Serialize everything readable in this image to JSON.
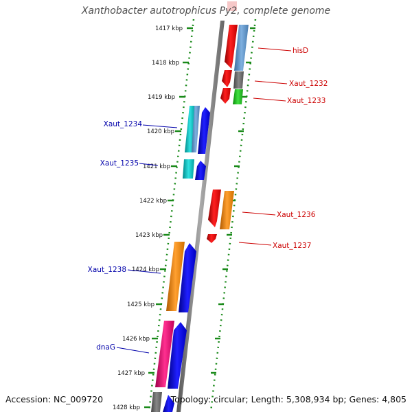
{
  "title": "Xanthobacter autotrophicus Py2, complete genome",
  "footer": {
    "accession": "Accession: NC_009720",
    "summary": "Topology: circular; Length: 5,308,934 bp; Genes: 4,805"
  },
  "colors": {
    "backbone": "#8a8a8a",
    "tick": "#1a8a1a",
    "forward_label": "#cc0000",
    "reverse_label": "#0000aa"
  },
  "scale": {
    "unit": "kbp",
    "ticks": [
      "1417 kbp",
      "1418 kbp",
      "1419 kbp",
      "1420 kbp",
      "1421 kbp",
      "1422 kbp",
      "1423 kbp",
      "1424 kbp",
      "1425 kbp",
      "1426 kbp",
      "1427 kbp",
      "1428 kbp"
    ]
  },
  "gene_labels": [
    {
      "name": "hisD",
      "strand": "forward"
    },
    {
      "name": "Xaut_1232",
      "strand": "forward"
    },
    {
      "name": "Xaut_1233",
      "strand": "forward"
    },
    {
      "name": "Xaut_1234",
      "strand": "reverse"
    },
    {
      "name": "Xaut_1235",
      "strand": "reverse"
    },
    {
      "name": "Xaut_1236",
      "strand": "forward"
    },
    {
      "name": "Xaut_1237",
      "strand": "forward"
    },
    {
      "name": "Xaut_1238",
      "strand": "reverse"
    },
    {
      "name": "dnaG",
      "strand": "reverse"
    }
  ]
}
